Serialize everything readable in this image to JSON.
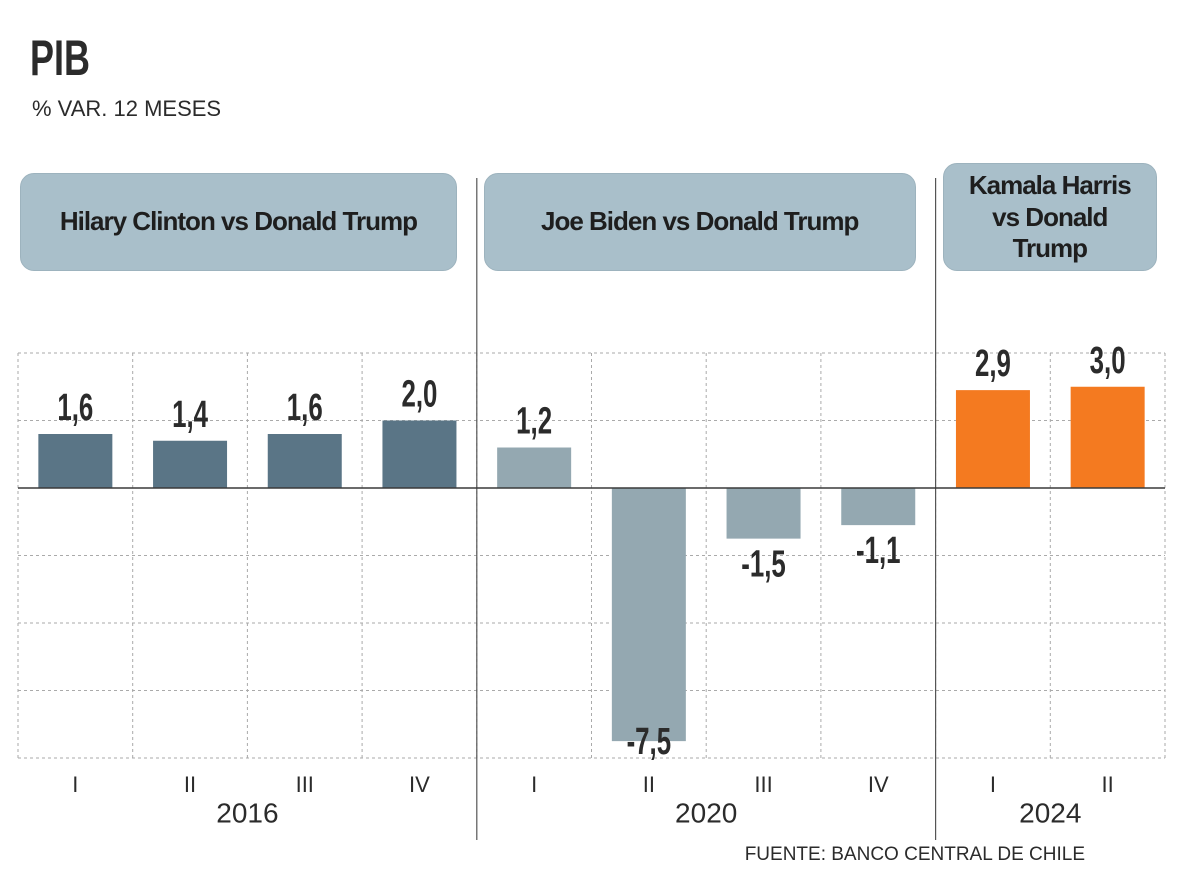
{
  "chart_data": {
    "type": "bar",
    "title": "PIB",
    "subtitle": "% VAR. 12 MESES",
    "source": "FUENTE: BANCO CENTRAL DE CHILE",
    "ylim": [
      -8,
      4
    ],
    "yticks": [
      -8,
      -6,
      -4,
      -2,
      0,
      2,
      4
    ],
    "grid": true,
    "series": [
      {
        "name": "Hilary Clinton vs Donald Trump",
        "year": 2016,
        "color": "#5a7586",
        "categories": [
          "I",
          "II",
          "III",
          "IV"
        ],
        "values": [
          1.6,
          1.4,
          1.6,
          2.0
        ],
        "value_labels": [
          "1,6",
          "1,4",
          "1,6",
          "2,0"
        ]
      },
      {
        "name": "Joe Biden vs Donald Trump",
        "year": 2020,
        "color": "#94a8b1",
        "categories": [
          "I",
          "II",
          "III",
          "IV"
        ],
        "values": [
          1.2,
          -7.5,
          -1.5,
          -1.1
        ],
        "value_labels": [
          "1,2",
          "-7,5",
          "-1,5",
          "-1,1"
        ]
      },
      {
        "name": "Kamala Harris vs Donald Trump",
        "year": 2024,
        "color": "#f47a20",
        "categories": [
          "I",
          "II"
        ],
        "values": [
          2.9,
          3.0
        ],
        "value_labels": [
          "2,9",
          "3,0"
        ]
      }
    ]
  }
}
